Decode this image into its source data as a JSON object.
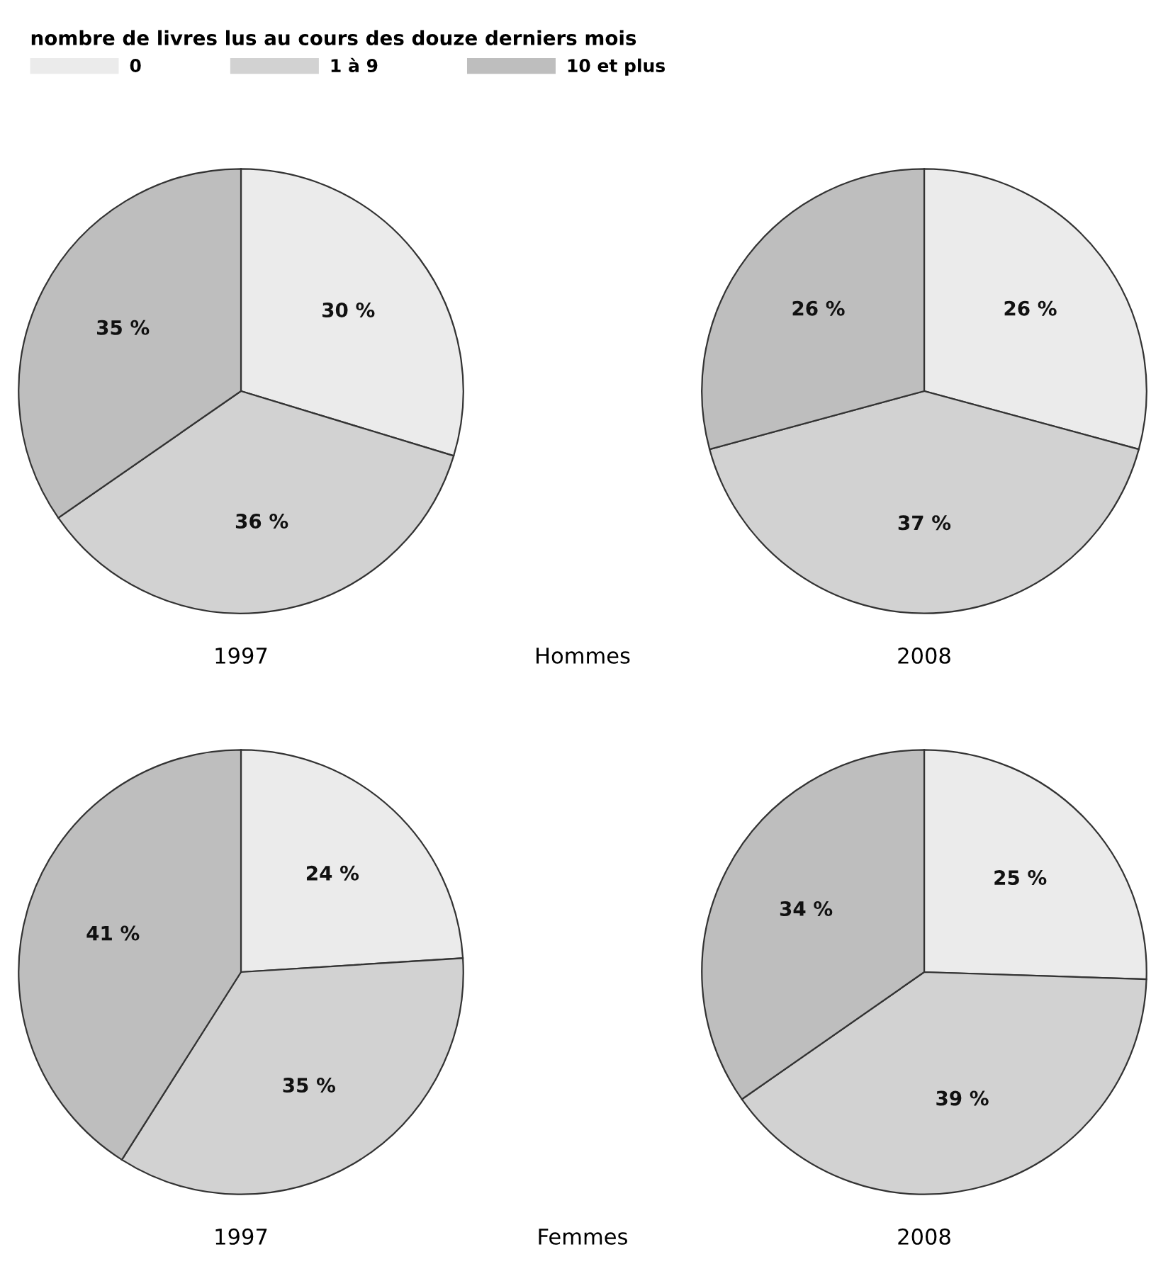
{
  "chart_data": [
    {
      "type": "pie",
      "title": "1997",
      "legend_title": "nombre de livres lus au cours des douze derniers mois",
      "legend": "top",
      "categories": [
        "0",
        "1 à 9",
        "10 et plus"
      ],
      "values": [
        30,
        36,
        35
      ],
      "value_labels": [
        "30 %",
        "36 %",
        "35 %"
      ],
      "colors": [
        "#ebebeb",
        "#d2d2d2",
        "#bebebe"
      ],
      "annotations": [
        "Hommes"
      ]
    },
    {
      "type": "pie",
      "title": "2008",
      "values": [
        26,
        37,
        26
      ],
      "value_labels": [
        "26 %",
        "37 %",
        "26 %"
      ],
      "colors": [
        "#ebebeb",
        "#d2d2d2",
        "#bebebe"
      ]
    },
    {
      "type": "pie",
      "title": "1997",
      "values": [
        24,
        35,
        41
      ],
      "value_labels": [
        "24 %",
        "35 %",
        "41 %"
      ],
      "colors": [
        "#ebebeb",
        "#d2d2d2",
        "#bebebe"
      ],
      "annotations": [
        "Femmes"
      ]
    },
    {
      "type": "pie",
      "title": "2008",
      "values": [
        25,
        39,
        34
      ],
      "value_labels": [
        "25 %",
        "39 %",
        "34 %"
      ],
      "colors": [
        "#ebebeb",
        "#d2d2d2",
        "#bebebe"
      ]
    }
  ]
}
